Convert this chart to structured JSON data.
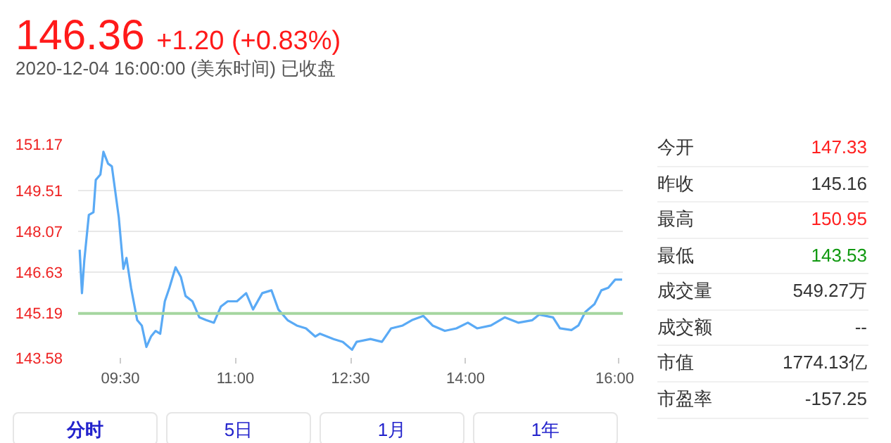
{
  "chart_data": [
    {
      "type": "line",
      "title": "146.36 +1.20 (+0.83%)",
      "subtitle": "2020-12-04 16:00:00 (美东时间) 已收盘",
      "x": [
        8.97,
        9.0,
        9.03,
        9.09,
        9.15,
        9.18,
        9.24,
        9.28,
        9.34,
        9.39,
        9.48,
        9.54,
        9.58,
        9.64,
        9.72,
        9.78,
        9.84,
        9.9,
        9.96,
        10.02,
        10.08,
        10.14,
        10.22,
        10.29,
        10.35,
        10.44,
        10.53,
        10.62,
        10.72,
        10.81,
        10.9,
        11.02,
        11.14,
        11.23,
        11.35,
        11.47,
        11.56,
        11.68,
        11.8,
        11.92,
        12.04,
        12.1,
        12.28,
        12.4,
        12.52,
        12.58,
        12.76,
        12.91,
        13.03,
        13.18,
        13.3,
        13.45,
        13.57,
        13.73,
        13.88,
        14.03,
        14.15,
        14.33,
        14.51,
        14.69,
        14.87,
        14.96,
        15.14,
        15.23,
        15.38,
        15.47,
        15.56,
        15.68,
        15.77,
        15.86,
        15.95,
        16.04
      ],
      "series": [
        {
          "color": "#5aaaf5",
          "values": [
            147.42,
            145.88,
            147.03,
            148.66,
            148.75,
            149.9,
            150.09,
            150.9,
            150.48,
            150.38,
            148.57,
            146.74,
            147.13,
            146.07,
            144.92,
            144.73,
            143.97,
            144.34,
            144.54,
            144.44,
            145.59,
            146.07,
            146.8,
            146.45,
            145.78,
            145.59,
            145.02,
            144.92,
            144.83,
            145.4,
            145.59,
            145.59,
            145.88,
            145.3,
            145.88,
            145.98,
            145.3,
            144.92,
            144.73,
            144.63,
            144.34,
            144.44,
            144.25,
            144.15,
            143.87,
            144.15,
            144.25,
            144.15,
            144.63,
            144.73,
            144.92,
            145.07,
            144.73,
            144.54,
            144.63,
            144.83,
            144.63,
            144.73,
            145.02,
            144.83,
            144.92,
            145.12,
            145.02,
            144.63,
            144.57,
            144.73,
            145.21,
            145.49,
            145.98,
            146.07,
            146.36,
            146.36
          ]
        }
      ],
      "xlim": [
        8.95,
        16.05
      ],
      "xticks": [
        {
          "value": 9.5,
          "label": "09:30"
        },
        {
          "value": 11,
          "label": "11:00"
        },
        {
          "value": 12.5,
          "label": "12:30"
        },
        {
          "value": 14,
          "label": "14:00"
        },
        {
          "value": 16,
          "label": "16:00"
        }
      ],
      "ylim": [
        143.58,
        151.17
      ],
      "yticks": [
        143.58,
        145.19,
        146.63,
        148.07,
        149.51,
        151.17
      ],
      "ref_lines": [
        {
          "axis": "y",
          "value": 145.16,
          "color": "#a5d6a0"
        }
      ],
      "grid": "y",
      "marker": "none",
      "line_style": "solid"
    },
    {
      "type": "other",
      "categories": [
        "今开",
        "昨收",
        "最高",
        "最低",
        "成交量",
        "成交额",
        "市值",
        "市盈率"
      ],
      "value_labels": [
        "147.33",
        "145.16",
        "150.95",
        "143.53",
        "549.27万",
        "--",
        "1774.13亿",
        "-157.25"
      ],
      "colors": [
        "#ff2020",
        "#333333",
        "#ff2020",
        "#119911",
        "#333333",
        "#333333",
        "#333333",
        "#333333"
      ],
      "annotations": [
        "分时",
        "5日",
        "1月",
        "1年"
      ]
    }
  ]
}
